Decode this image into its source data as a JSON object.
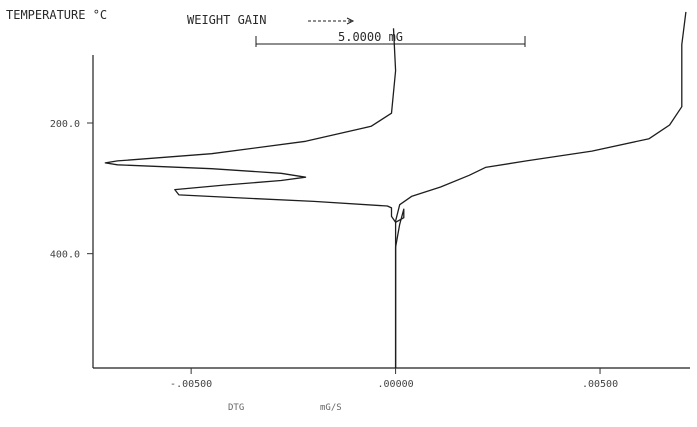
{
  "chart_data": {
    "type": "line",
    "title_left": "TEMPERATURE °C",
    "title_right": "WEIGHT  GAIN",
    "scale_label": "5.0000 mG",
    "xlabel": "DTG",
    "xunit": "mG/S",
    "ylabel": "TEMPERATURE °C",
    "x_ticks": [
      {
        "value": -0.005,
        "label": "-.00500"
      },
      {
        "value": 0.0,
        "label": ".00000"
      },
      {
        "value": 0.005,
        "label": ".00500"
      }
    ],
    "y_ticks": [
      {
        "value": 200,
        "label": "200.0"
      },
      {
        "value": 400,
        "label": "400.0"
      }
    ],
    "xlim": [
      -0.0074,
      0.0072
    ],
    "ylim": [
      50,
      575
    ],
    "series": [
      {
        "key": "dtg",
        "points": [
          [
            -5e-05,
            55
          ],
          [
            0.0,
            120
          ],
          [
            -0.0001,
            185
          ],
          [
            -0.0006,
            205
          ],
          [
            -0.0022,
            228
          ],
          [
            -0.0045,
            247
          ],
          [
            -0.0068,
            258
          ],
          [
            -0.0071,
            261
          ],
          [
            -0.0068,
            264
          ],
          [
            -0.0045,
            270
          ],
          [
            -0.0028,
            277
          ],
          [
            -0.0022,
            283
          ],
          [
            -0.0028,
            288
          ],
          [
            -0.0042,
            295
          ],
          [
            -0.0054,
            302
          ],
          [
            -0.0053,
            310
          ],
          [
            -0.004,
            314
          ],
          [
            -0.002,
            320
          ],
          [
            -0.0002,
            327
          ],
          [
            -0.0001,
            330
          ],
          [
            -0.0001,
            343
          ],
          [
            0.0,
            352
          ],
          [
            0.0002,
            345
          ],
          [
            0.0002,
            332
          ],
          [
            0.0001,
            355
          ],
          [
            0.0,
            390
          ],
          [
            0.0,
            430
          ],
          [
            0.0,
            575
          ]
        ]
      },
      {
        "key": "tg",
        "points": [
          [
            0.0071,
            30
          ],
          [
            0.007,
            80
          ],
          [
            0.007,
            130
          ],
          [
            0.007,
            175
          ],
          [
            0.0067,
            203
          ],
          [
            0.0062,
            224
          ],
          [
            0.0048,
            243
          ],
          [
            0.0032,
            258
          ],
          [
            0.0022,
            268
          ],
          [
            0.0018,
            280
          ],
          [
            0.0011,
            298
          ],
          [
            0.0004,
            312
          ],
          [
            0.0001,
            325
          ],
          [
            0.0,
            350
          ],
          [
            0.0,
            395
          ],
          [
            0.0,
            430
          ],
          [
            0.0,
            575
          ]
        ]
      }
    ]
  }
}
